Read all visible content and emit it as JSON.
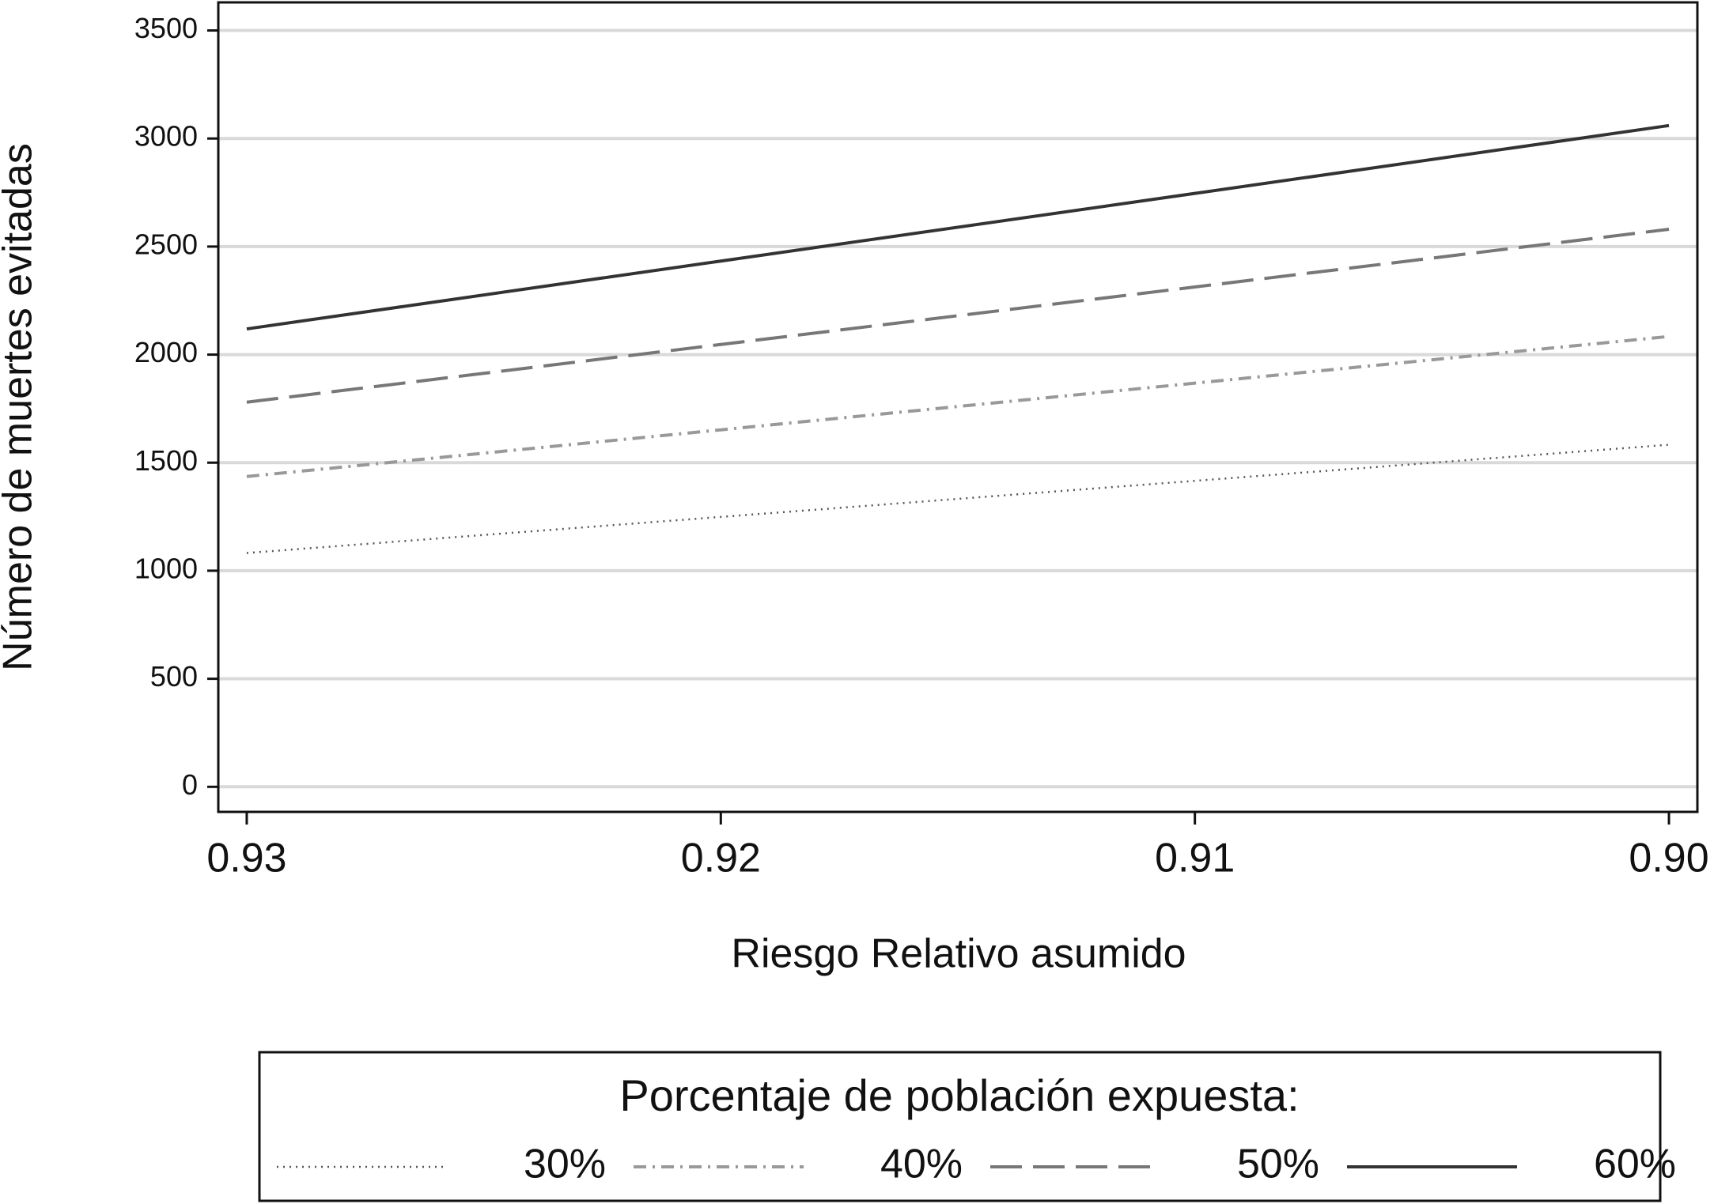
{
  "chart_data": {
    "type": "line",
    "x_label": "Riesgo Relativo asumido",
    "y_label": "Número de muertes evitadas",
    "x": [
      0.93,
      0.92,
      0.91,
      0.9
    ],
    "series": [
      {
        "name": "30%",
        "color": "#555555",
        "linestyle": "dotted",
        "values": [
          1082,
          1249,
          1416,
          1583
        ]
      },
      {
        "name": "40%",
        "color": "#999999",
        "linestyle": "dashdot",
        "values": [
          1436,
          1652,
          1868,
          2084
        ]
      },
      {
        "name": "50%",
        "color": "#777777",
        "linestyle": "dashed",
        "values": [
          1780,
          2047,
          2313,
          2580
        ]
      },
      {
        "name": "60%",
        "color": "#333333",
        "linestyle": "solid",
        "values": [
          2119,
          2433,
          2746,
          3060
        ]
      }
    ],
    "xlim": [
      0.9306,
      0.8994
    ],
    "xticks": [
      {
        "value": 0.93,
        "label": "0.93"
      },
      {
        "value": 0.92,
        "label": "0.92"
      },
      {
        "value": 0.91,
        "label": "0.91"
      },
      {
        "value": 0.9,
        "label": "0.90"
      }
    ],
    "ylim": [
      -116,
      3630
    ],
    "yticks": [
      0,
      500,
      1000,
      1500,
      2000,
      2500,
      3000,
      3500
    ],
    "grid": true,
    "legend_title": "Porcentaje de población expuesta:",
    "legend_position": "bottom"
  }
}
